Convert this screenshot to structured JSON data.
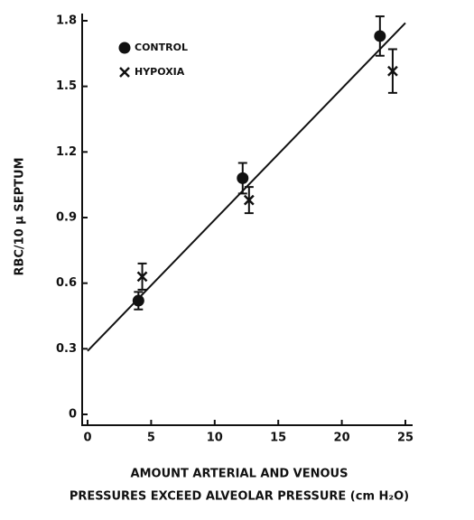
{
  "chart_data": {
    "type": "scatter",
    "y_label": "RBC/10 μ SEPTUM",
    "x_label": [
      "AMOUNT ARTERIAL AND VENOUS",
      "PRESSURES EXCEED ALVEOLAR PRESSURE (cm H₂O)"
    ],
    "xlim": [
      0,
      25
    ],
    "xticks": [
      0,
      5,
      10,
      15,
      20,
      25
    ],
    "ylim": [
      0,
      1.8
    ],
    "yticks": [
      0,
      0.3,
      0.6,
      0.9,
      1.2,
      1.5,
      1.8
    ],
    "legend": "upper left",
    "series": [
      {
        "name": "CONTROL",
        "marker": "circle",
        "color": "#111111",
        "x": [
          4,
          12.2,
          23
        ],
        "values": [
          0.52,
          1.08,
          1.73
        ],
        "errors": [
          0.04,
          0.07,
          0.09
        ]
      },
      {
        "name": "HYPOXIA",
        "marker": "x",
        "color": "#111111",
        "x": [
          4.3,
          12.7,
          24
        ],
        "values": [
          0.63,
          0.98,
          1.57
        ],
        "errors": [
          0.06,
          0.06,
          0.1
        ]
      }
    ],
    "fit_line": {
      "x": [
        0,
        25
      ],
      "y": [
        0.29,
        1.79
      ]
    }
  }
}
